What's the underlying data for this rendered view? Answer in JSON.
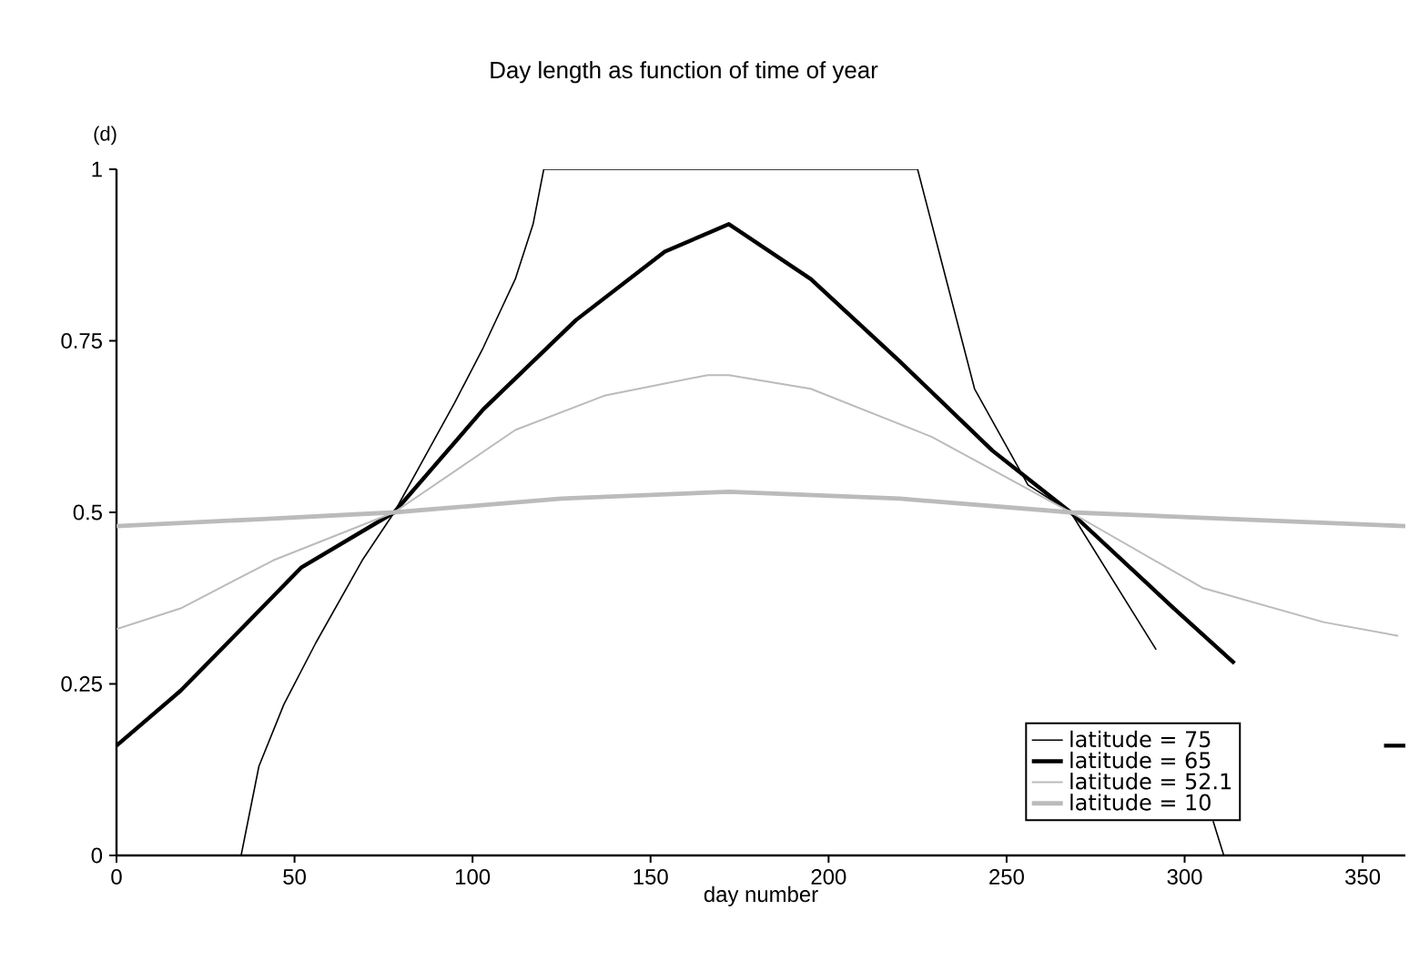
{
  "chart_data": {
    "type": "line",
    "title": "Day length as function of time of year",
    "xlabel": "day number",
    "ylabel": "(d)",
    "xlim": [
      0,
      362
    ],
    "ylim": [
      0,
      1
    ],
    "xticks": [
      0,
      50,
      100,
      150,
      200,
      250,
      300,
      350
    ],
    "yticks": [
      0,
      0.25,
      0.5,
      0.75,
      1
    ],
    "grid": false,
    "legend": "bottom right",
    "marker": "none",
    "line_style": "solid",
    "series": [
      {
        "name": "latitude = 75",
        "color": "#000000",
        "x": [
          35,
          40,
          47,
          56,
          69,
          78,
          95,
          103,
          112,
          117,
          120,
          225,
          231,
          241,
          256,
          268,
          292,
          300,
          308,
          311
        ],
        "values": [
          0,
          0.13,
          0.22,
          0.31,
          0.43,
          0.5,
          0.66,
          0.74,
          0.84,
          0.92,
          1,
          1,
          0.88,
          0.68,
          0.54,
          0.5,
          0.3,
          null,
          0.05,
          0
        ]
      },
      {
        "name": "latitude = 65",
        "color": "#000000",
        "x": [
          0,
          18,
          35,
          52,
          78,
          103,
          129,
          154,
          172,
          195,
          220,
          246,
          268,
          297,
          314,
          330,
          356,
          362
        ],
        "values": [
          0.16,
          0.24,
          0.33,
          0.42,
          0.5,
          0.65,
          0.78,
          0.88,
          0.92,
          0.84,
          0.72,
          0.59,
          0.5,
          0.36,
          0.28,
          null,
          0.16,
          0.16
        ]
      },
      {
        "name": "latitude = 52.1",
        "color": "#bbbbbb",
        "x": [
          0,
          18,
          44,
          78,
          112,
          137,
          166,
          172,
          195,
          229,
          268,
          305,
          339,
          360
        ],
        "values": [
          0.33,
          0.36,
          0.43,
          0.5,
          0.62,
          0.67,
          0.7,
          0.7,
          0.68,
          0.61,
          0.5,
          0.39,
          0.34,
          0.32
        ]
      },
      {
        "name": "latitude = 10",
        "color": "#bbbbbb",
        "x": [
          0,
          40,
          78,
          125,
          172,
          220,
          268,
          315,
          362
        ],
        "values": [
          0.48,
          0.49,
          0.5,
          0.52,
          0.53,
          0.52,
          0.5,
          0.49,
          0.48
        ]
      }
    ]
  }
}
